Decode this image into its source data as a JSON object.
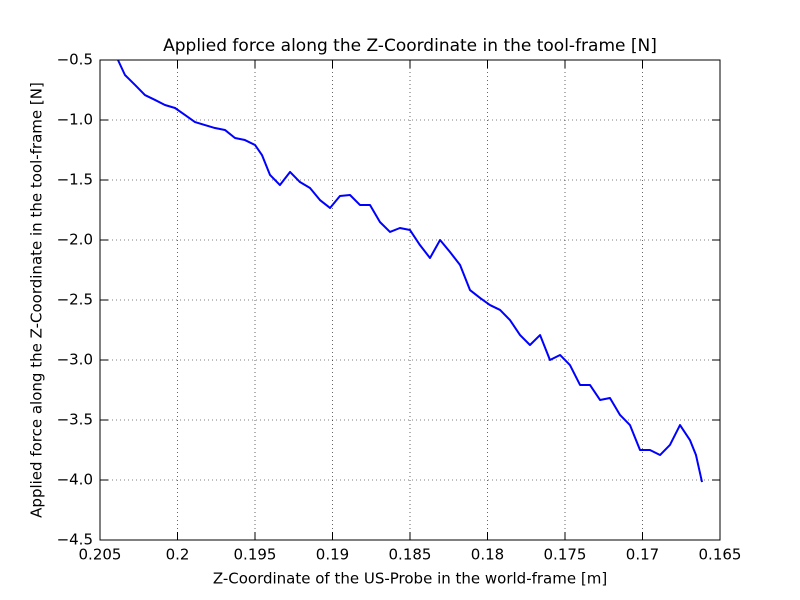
{
  "chart_data": {
    "type": "line",
    "title": "Applied force along the Z-Coordinate in the tool-frame [N]",
    "x_label": "Z-Coordinate of the US-Probe in the world-frame [m]",
    "y_label": "Applied force along the Z-Coordinate in the tool-frame [N]",
    "xlim": [
      0.205,
      0.165
    ],
    "ylim": [
      -4.5,
      -0.5
    ],
    "xticks": [
      0.205,
      0.2,
      0.195,
      0.19,
      0.185,
      0.18,
      0.175,
      0.17,
      0.165
    ],
    "yticks": [
      {
        "value": -4.5,
        "label": "−4.5"
      },
      {
        "value": -4.0,
        "label": "−4.0"
      },
      {
        "value": -3.5,
        "label": "−3.5"
      },
      {
        "value": -3.0,
        "label": "−3.0"
      },
      {
        "value": -2.5,
        "label": "−2.5"
      },
      {
        "value": -2.0,
        "label": "−2.0"
      },
      {
        "value": -1.5,
        "label": "−1.5"
      },
      {
        "value": -1.0,
        "label": "−1.0"
      },
      {
        "value": -0.5,
        "label": "−0.5"
      }
    ],
    "grid": true,
    "series": [
      {
        "color": "#0000ff",
        "x": [
          0.20384,
          0.20339,
          0.20274,
          0.2021,
          0.20145,
          0.20081,
          0.20016,
          0.19952,
          0.19887,
          0.19823,
          0.19758,
          0.19694,
          0.19629,
          0.19565,
          0.195,
          0.19455,
          0.19403,
          0.19339,
          0.19274,
          0.1921,
          0.19145,
          0.19081,
          0.19016,
          0.18952,
          0.18887,
          0.18823,
          0.18758,
          0.18694,
          0.18629,
          0.18565,
          0.185,
          0.18436,
          0.18371,
          0.18306,
          0.18242,
          0.18177,
          0.18113,
          0.18048,
          0.17984,
          0.17919,
          0.17855,
          0.1779,
          0.17726,
          0.17661,
          0.17597,
          0.17532,
          0.17468,
          0.17403,
          0.17339,
          0.17274,
          0.1721,
          0.17145,
          0.17081,
          0.17016,
          0.16952,
          0.16887,
          0.16823,
          0.16758,
          0.16694,
          0.16655,
          0.16616
        ],
        "values": [
          -0.5,
          -0.625,
          -0.708,
          -0.792,
          -0.833,
          -0.875,
          -0.9,
          -0.958,
          -1.017,
          -1.042,
          -1.067,
          -1.083,
          -1.15,
          -1.167,
          -1.208,
          -1.292,
          -1.458,
          -1.542,
          -1.433,
          -1.517,
          -1.567,
          -1.667,
          -1.733,
          -1.633,
          -1.625,
          -1.708,
          -1.708,
          -1.85,
          -1.933,
          -1.9,
          -1.917,
          -2.042,
          -2.15,
          -2.0,
          -2.1,
          -2.208,
          -2.417,
          -2.483,
          -2.542,
          -2.583,
          -2.667,
          -2.792,
          -2.875,
          -2.792,
          -3.0,
          -2.958,
          -3.042,
          -3.208,
          -3.208,
          -3.333,
          -3.317,
          -3.458,
          -3.542,
          -3.75,
          -3.75,
          -3.792,
          -3.708,
          -3.542,
          -3.667,
          -3.792,
          -4.017
        ]
      }
    ]
  }
}
